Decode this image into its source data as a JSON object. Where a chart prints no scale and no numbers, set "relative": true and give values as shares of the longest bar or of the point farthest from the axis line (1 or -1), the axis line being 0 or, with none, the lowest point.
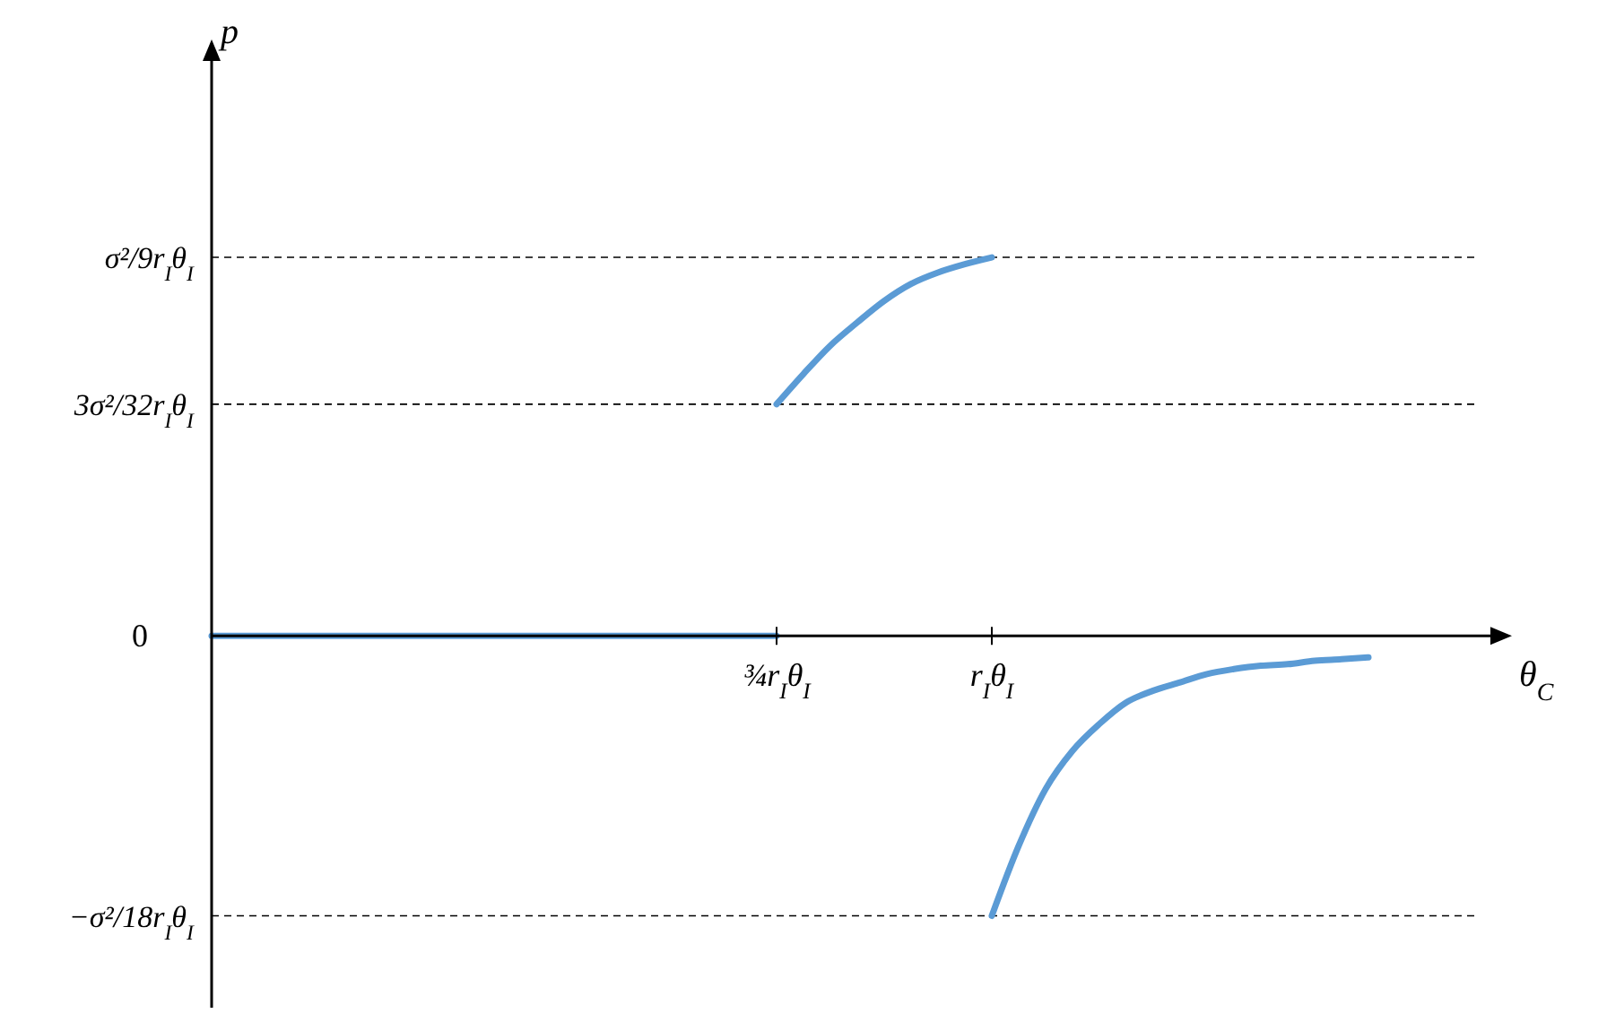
{
  "chart_data": {
    "type": "line",
    "relative": true,
    "xlabel": "θ$_{C}$",
    "categories": [
      null,
      null,
      null,
      null,
      null,
      null,
      null,
      null,
      null,
      null,
      null,
      null,
      null,
      null,
      null,
      null,
      null,
      null,
      null,
      null,
      null,
      "¾r$_{I}$θ$_{I}$",
      null,
      null,
      null,
      null,
      null,
      null,
      null,
      "r$_{I}$θ$_{I}$",
      null,
      null,
      null,
      null,
      null,
      null,
      null,
      null,
      null,
      null,
      null,
      null,
      null,
      null,
      null,
      null,
      null,
      null
    ],
    "series": [
      {
        "color": "#5b9bd5",
        "values": [
          0,
          0,
          0,
          0,
          0,
          0,
          0,
          0,
          0,
          0,
          0,
          0,
          0,
          0,
          0,
          0,
          0,
          0,
          0,
          0,
          0,
          0,
          null,
          null,
          null,
          null,
          null,
          null,
          null,
          null,
          null,
          null,
          null,
          null,
          null,
          null,
          null,
          null,
          null,
          null,
          null,
          null,
          null,
          null,
          null,
          null,
          null,
          null
        ]
      },
      {
        "color": "#5b9bd5",
        "values": [
          null,
          null,
          null,
          null,
          null,
          null,
          null,
          null,
          null,
          null,
          null,
          null,
          null,
          null,
          null,
          null,
          null,
          null,
          null,
          null,
          null,
          0.612,
          0.692,
          0.767,
          0.828,
          0.885,
          0.93,
          0.96,
          0.982,
          1,
          null,
          null,
          null,
          null,
          null,
          null,
          null,
          null,
          null,
          null,
          null,
          null,
          null,
          null,
          null,
          null,
          null,
          null
        ]
      },
      {
        "color": "#5b9bd5",
        "values": [
          null,
          null,
          null,
          null,
          null,
          null,
          null,
          null,
          null,
          null,
          null,
          null,
          null,
          null,
          null,
          null,
          null,
          null,
          null,
          null,
          null,
          null,
          null,
          null,
          null,
          null,
          null,
          null,
          null,
          -0.74,
          -0.555,
          -0.405,
          -0.304,
          -0.233,
          -0.176,
          -0.145,
          -0.123,
          -0.101,
          -0.088,
          -0.079,
          -0.075,
          -0.066,
          -0.062,
          -0.057,
          null,
          null,
          null,
          null
        ]
      }
    ],
    "ref_lines": [
      {
        "axis": "y",
        "value": 1,
        "label": "σ²/9r$_{I}$θ$_{I}$",
        "color": "#000000",
        "line_style": "dashed"
      },
      {
        "axis": "y",
        "value": 0.612,
        "label": "3σ²/32r$_{I}$θ$_{I}$",
        "color": "#000000",
        "line_style": "dashed"
      },
      {
        "axis": "y",
        "value": -0.74,
        "label": "−σ²/18r$_{I}$θ$_{I}$",
        "color": "#000000",
        "line_style": "dashed"
      }
    ],
    "annotations": [
      "p",
      "0"
    ],
    "grid": false,
    "legend": false,
    "marker": "none",
    "line_style": "solid"
  }
}
